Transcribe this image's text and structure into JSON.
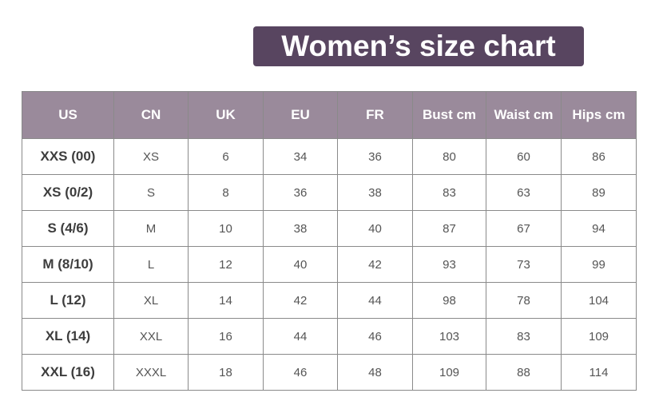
{
  "title": "Women’s size chart",
  "colors": {
    "title_bg": "#584560",
    "header_bg": "#9a8a9b"
  },
  "headers": [
    "US",
    "CN",
    "UK",
    "EU",
    "FR",
    "Bust cm",
    "Waist cm",
    "Hips cm"
  ],
  "rows": [
    [
      "XXS (00)",
      "XS",
      "6",
      "34",
      "36",
      "80",
      "60",
      "86"
    ],
    [
      "XS (0/2)",
      "S",
      "8",
      "36",
      "38",
      "83",
      "63",
      "89"
    ],
    [
      "S (4/6)",
      "M",
      "10",
      "38",
      "40",
      "87",
      "67",
      "94"
    ],
    [
      "M (8/10)",
      "L",
      "12",
      "40",
      "42",
      "93",
      "73",
      "99"
    ],
    [
      "L (12)",
      "XL",
      "14",
      "42",
      "44",
      "98",
      "78",
      "104"
    ],
    [
      "XL (14)",
      "XXL",
      "16",
      "44",
      "46",
      "103",
      "83",
      "109"
    ],
    [
      "XXL (16)",
      "XXXL",
      "18",
      "46",
      "48",
      "109",
      "88",
      "114"
    ]
  ]
}
